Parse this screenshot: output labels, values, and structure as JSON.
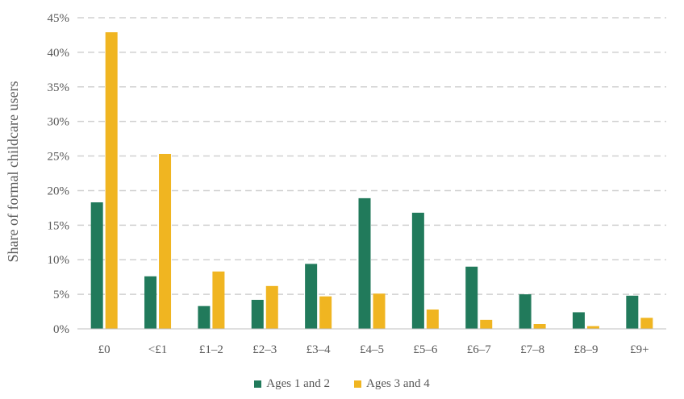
{
  "chart_data": {
    "type": "bar",
    "title": "",
    "xlabel": "",
    "ylabel": "Share of formal childcare users",
    "ylim": [
      0,
      45
    ],
    "y_unit": "%",
    "y_ticks": [
      0,
      5,
      10,
      15,
      20,
      25,
      30,
      35,
      40,
      45
    ],
    "y_tick_labels": [
      "0%",
      "5%",
      "10%",
      "15%",
      "20%",
      "25%",
      "30%",
      "35%",
      "40%",
      "45%"
    ],
    "grid": "horizontal dashed",
    "legend_position": "bottom",
    "categories": [
      "£0",
      "<£1",
      "£1–2",
      "£2–3",
      "£3–4",
      "£4–5",
      "£5–6",
      "£6–7",
      "£7–8",
      "£8–9",
      "£9+"
    ],
    "series": [
      {
        "name": "Ages 1 and 2",
        "color": "#217a5b",
        "values": [
          18.3,
          7.6,
          3.3,
          4.2,
          9.4,
          18.9,
          16.8,
          9.0,
          5.0,
          2.4,
          4.8
        ]
      },
      {
        "name": "Ages 3 and 4",
        "color": "#f0b521",
        "values": [
          42.9,
          25.3,
          8.3,
          6.2,
          4.7,
          5.1,
          2.8,
          1.3,
          0.7,
          0.4,
          1.6
        ]
      }
    ]
  }
}
